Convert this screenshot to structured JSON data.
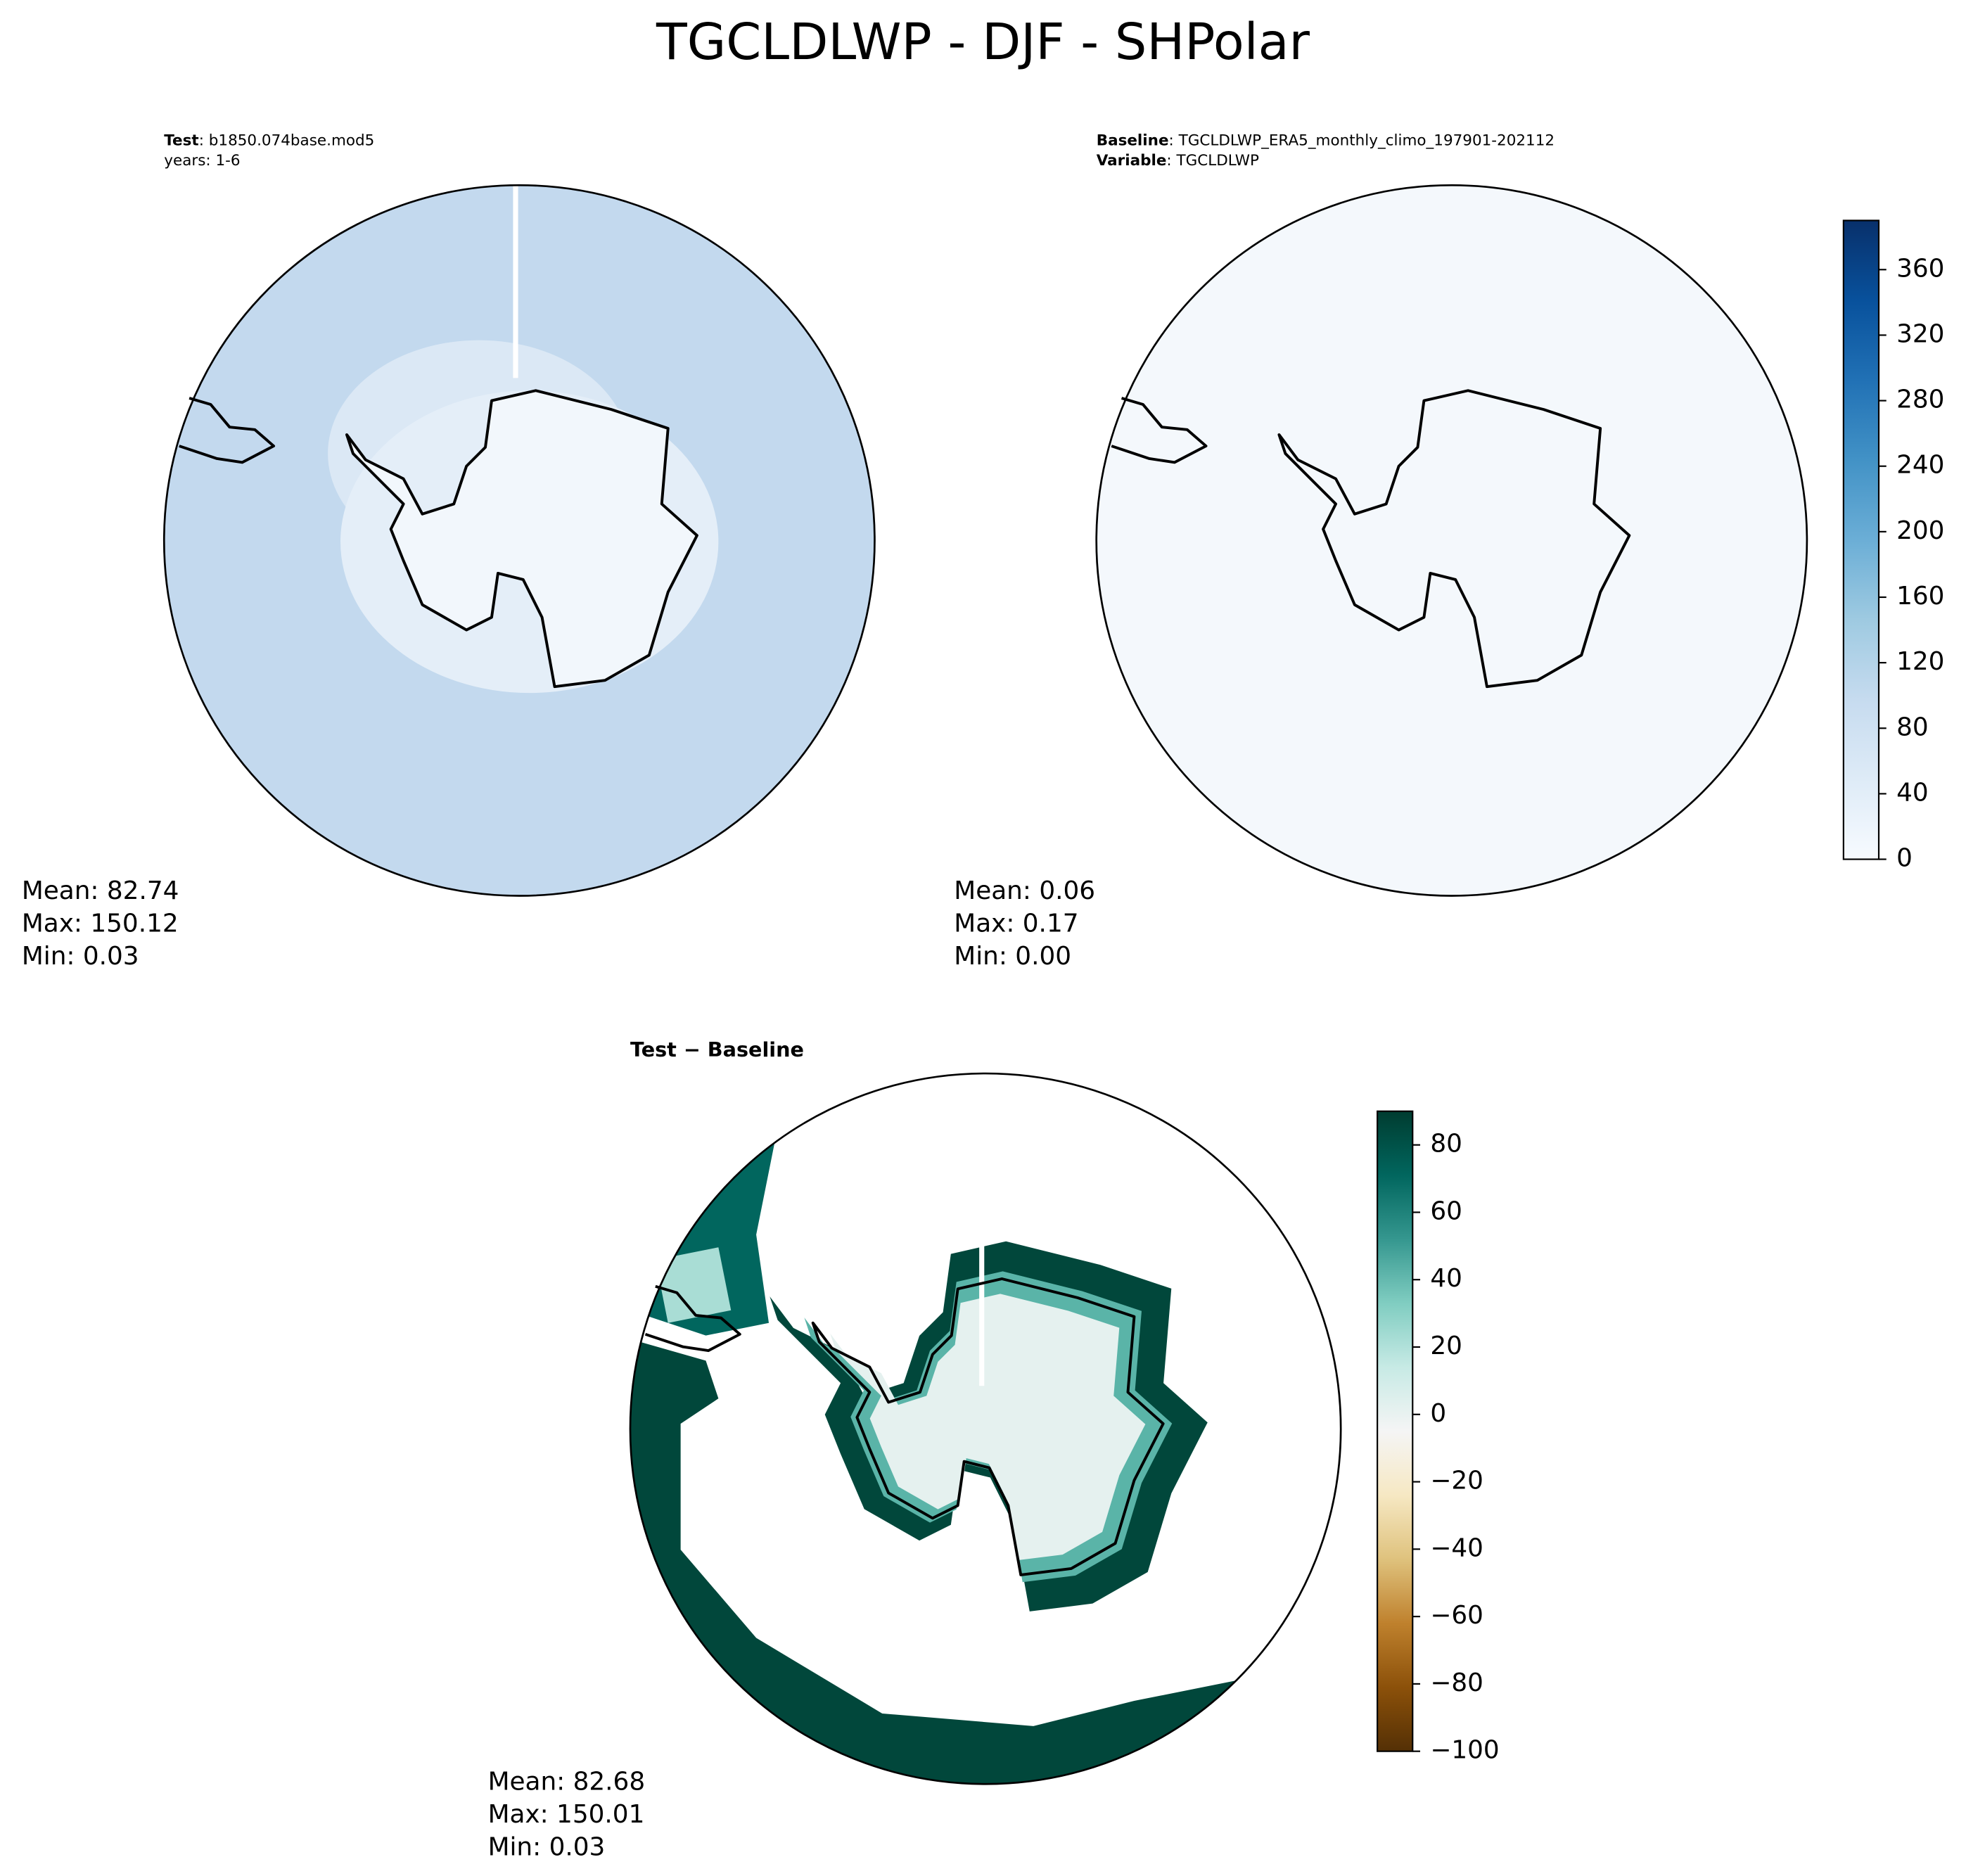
{
  "title": "TGCLDLWP - DJF - SHPolar",
  "chart_data": [
    {
      "type": "map",
      "title_bold": "Test",
      "title_rest": ": b1850.074base.mod5",
      "subtitle": "years: 1-6",
      "stats": [
        "Mean: 82.74",
        "Max: 150.12",
        "Min:  0.03"
      ]
    },
    {
      "type": "map",
      "title_bold": "Baseline",
      "title_rest": ": TGCLDLWP_ERA5_monthly_climo_197901-202112",
      "subtitle_bold": "Variable",
      "subtitle_rest": ": TGCLDLWP",
      "stats": [
        "Mean:  0.06",
        "Max:  0.17",
        "Min:  0.00"
      ],
      "colorbar": {
        "ylim": [
          0,
          390
        ],
        "yticks": [
          0,
          40,
          80,
          120,
          160,
          200,
          240,
          280,
          320,
          360
        ],
        "colors": [
          "#f7fbff",
          "#deebf7",
          "#c6dbef",
          "#9ecae1",
          "#6baed6",
          "#4292c6",
          "#2171b5",
          "#08519c",
          "#08306b"
        ]
      }
    },
    {
      "type": "map",
      "title_bold": "Test − Baseline",
      "stats": [
        "Mean: 82.68",
        "Max: 150.01",
        "Min:  0.03"
      ],
      "colorbar": {
        "ylim": [
          -100,
          90
        ],
        "yticks": [
          {
            "value": -100,
            "label": "−100"
          },
          {
            "value": -80,
            "label": "−80"
          },
          {
            "value": -60,
            "label": "−60"
          },
          {
            "value": -40,
            "label": "−40"
          },
          {
            "value": -20,
            "label": "−20"
          },
          0,
          20,
          40,
          60,
          80
        ],
        "colors": [
          "#543005",
          "#8c510a",
          "#bf812d",
          "#dfc27d",
          "#f6e8c3",
          "#f5f5f5",
          "#c7eae5",
          "#80cdc1",
          "#35978f",
          "#01665e",
          "#003c30"
        ]
      }
    }
  ]
}
